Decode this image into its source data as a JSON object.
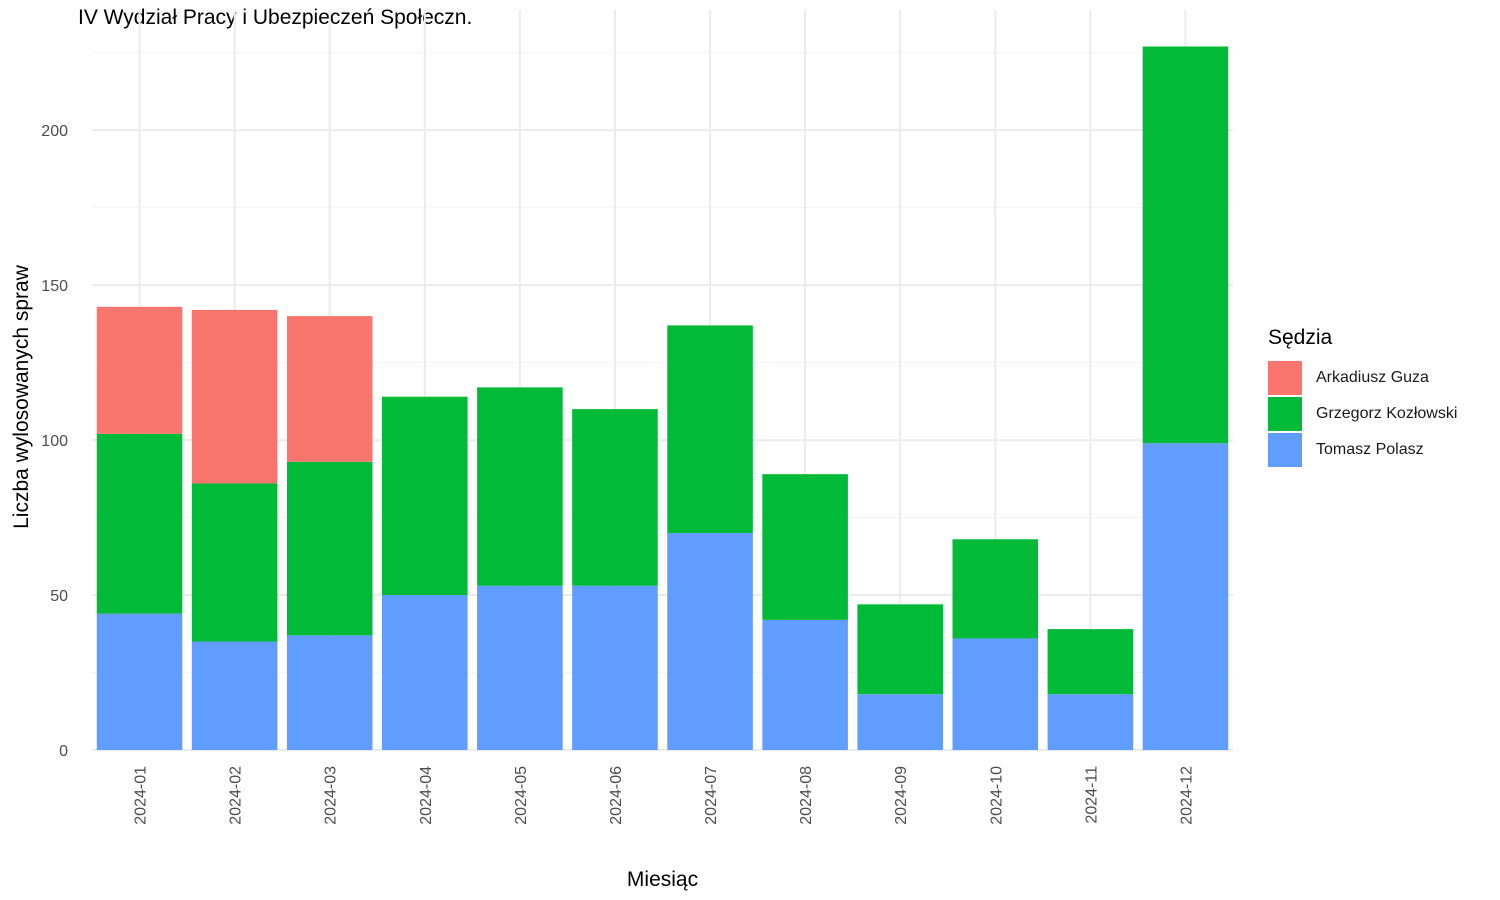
{
  "title": "IV Wydział Pracy i Ubezpieczeń Społeczn.",
  "chart_data": {
    "type": "bar",
    "stacked": true,
    "categories": [
      "2024-01",
      "2024-02",
      "2024-03",
      "2024-04",
      "2024-05",
      "2024-06",
      "2024-07",
      "2024-08",
      "2024-09",
      "2024-10",
      "2024-11",
      "2024-12"
    ],
    "series": [
      {
        "name": "Tomasz Polasz",
        "color": "#619CFF",
        "values": [
          44,
          35,
          37,
          50,
          53,
          53,
          70,
          42,
          18,
          36,
          18,
          99
        ]
      },
      {
        "name": "Grzegorz Kozłowski",
        "color": "#00BA38",
        "values": [
          58,
          51,
          56,
          64,
          64,
          57,
          67,
          47,
          29,
          32,
          21,
          128
        ]
      },
      {
        "name": "Arkadiusz Guza",
        "color": "#F8766D",
        "values": [
          41,
          56,
          47,
          0,
          0,
          0,
          0,
          0,
          0,
          0,
          0,
          0
        ]
      }
    ],
    "xlabel": "Miesiąc",
    "ylabel": "Liczba wylosowanych spraw",
    "ylim": [
      0,
      227
    ],
    "yticks": [
      0,
      50,
      100,
      150,
      200
    ],
    "grid": true,
    "legend_title": "Sędzia",
    "legend_position": "right",
    "legend_order": [
      "Arkadiusz Guza",
      "Grzegorz Kozłowski",
      "Tomasz Polasz"
    ]
  }
}
